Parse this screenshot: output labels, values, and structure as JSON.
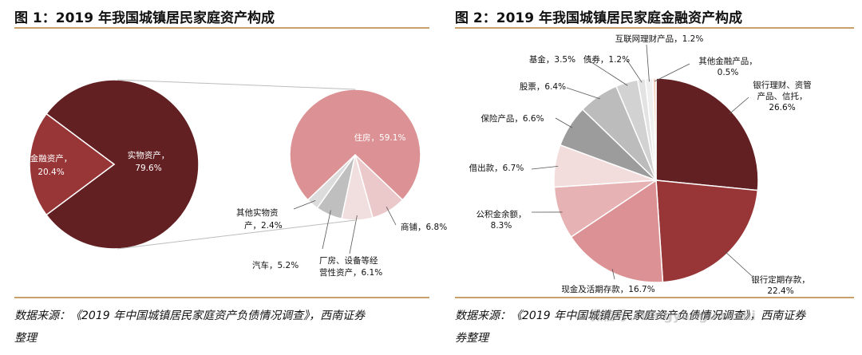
{
  "figure1": {
    "title": "图 1：2019 年我国城镇居民家庭资产构成",
    "source_line1": "数据来源：《2019 年中国城镇居民家庭资产负债情况调查》，西南证券",
    "source_line2": "整理"
  },
  "figure2": {
    "title": "图 2：2019 年我国城镇居民家庭金融资产构成",
    "source_line1": "数据来源：《2019 年中国城镇居民家庭资产负债情况调查》，西南证券",
    "source_line2": "券整理",
    "watermark": "微信号：bingyanguanshi"
  },
  "colors": {
    "dark_red": "#632022",
    "red": "#983537",
    "pink": "#dc9294",
    "light_pink": "#ebc9cb",
    "rule": "#c9a06a"
  },
  "chart_data": [
    {
      "type": "pie",
      "name": "total_assets",
      "slices": [
        {
          "label": "实物资产，",
          "label2": "79.6%",
          "value": 79.6
        },
        {
          "label": "金融资产，",
          "label2": "20.4%",
          "value": 20.4
        }
      ]
    },
    {
      "type": "pie",
      "name": "real_asset_breakdown",
      "slices": [
        {
          "label": "住房，59.1%",
          "value": 59.1
        },
        {
          "label": "商铺，6.8%",
          "value": 6.8
        },
        {
          "label": "厂房、设备等经",
          "label2": "营性资产，6.1%",
          "value": 6.1
        },
        {
          "label": "汽车，5.2%",
          "value": 5.2
        },
        {
          "label": "其他实物资",
          "label2": "产，2.4%",
          "value": 2.4
        }
      ]
    },
    {
      "type": "pie",
      "name": "financial_assets",
      "slices": [
        {
          "label": "银行理财、资管",
          "label2": "产品、信托，",
          "label3": "26.6%",
          "value": 26.6
        },
        {
          "label": "银行定期存款，",
          "label2": "22.4%",
          "value": 22.4
        },
        {
          "label": "现金及活期存款，16.7%",
          "value": 16.7
        },
        {
          "label": "公积金余额，",
          "label2": "8.3%",
          "value": 8.3
        },
        {
          "label": "借出款，6.7%",
          "value": 6.7
        },
        {
          "label": "保险产品，6.6%",
          "value": 6.6
        },
        {
          "label": "股票，6.4%",
          "value": 6.4
        },
        {
          "label": "基金，3.5%",
          "value": 3.5
        },
        {
          "label": "债券，1.2%",
          "value": 1.2
        },
        {
          "label": "互联网理财产品，1.2%",
          "value": 1.2
        },
        {
          "label": "其他金融产品，",
          "label2": "0.5%",
          "value": 0.5
        }
      ]
    }
  ]
}
